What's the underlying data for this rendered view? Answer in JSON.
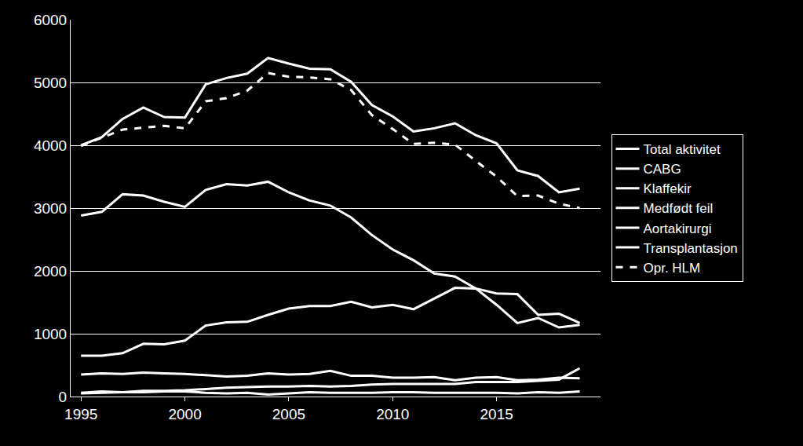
{
  "chart_data": {
    "type": "line",
    "x": [
      1995,
      1996,
      1997,
      1998,
      1999,
      2000,
      2001,
      2002,
      2003,
      2004,
      2005,
      2006,
      2007,
      2008,
      2009,
      2010,
      2011,
      2012,
      2013,
      2014,
      2015,
      2016,
      2017,
      2018,
      2019
    ],
    "xlim": [
      1994.5,
      2020
    ],
    "xticks": [
      1995,
      2000,
      2005,
      2010,
      2015
    ],
    "ylim": [
      0,
      6000
    ],
    "yticks": [
      0,
      1000,
      2000,
      3000,
      4000,
      5000,
      6000
    ],
    "grid": true,
    "legend": "right",
    "series": [
      {
        "name": "Total aktivitet",
        "color": "#ffffff",
        "line_style": "solid",
        "values": [
          4000,
          4130,
          4420,
          4600,
          4450,
          4440,
          4970,
          5070,
          5140,
          5390,
          5300,
          5220,
          5210,
          5010,
          4640,
          4460,
          4220,
          4270,
          4350,
          4160,
          4030,
          3600,
          3510,
          3250,
          3310
        ]
      },
      {
        "name": "CABG",
        "color": "#ffffff",
        "line_style": "solid",
        "values": [
          2880,
          2940,
          3220,
          3200,
          3100,
          3020,
          3290,
          3380,
          3360,
          3420,
          3250,
          3120,
          3040,
          2850,
          2570,
          2340,
          2170,
          1960,
          1910,
          1720,
          1460,
          1170,
          1250,
          1100,
          1140
        ]
      },
      {
        "name": "Klaffekir",
        "color": "#ffffff",
        "line_style": "solid",
        "values": [
          650,
          650,
          690,
          840,
          830,
          890,
          1130,
          1180,
          1190,
          1300,
          1400,
          1440,
          1440,
          1510,
          1420,
          1460,
          1390,
          1560,
          1730,
          1720,
          1640,
          1630,
          1300,
          1320,
          1170
        ]
      },
      {
        "name": "Medfødt feil",
        "color": "#ffffff",
        "line_style": "solid",
        "values": [
          350,
          370,
          360,
          380,
          370,
          360,
          340,
          320,
          330,
          370,
          350,
          360,
          410,
          330,
          330,
          300,
          300,
          310,
          260,
          300,
          310,
          260,
          270,
          300,
          290
        ]
      },
      {
        "name": "Aortakirurgi",
        "color": "#ffffff",
        "line_style": "solid",
        "values": [
          60,
          80,
          70,
          90,
          90,
          100,
          120,
          140,
          150,
          160,
          160,
          170,
          160,
          170,
          190,
          200,
          200,
          200,
          200,
          230,
          230,
          230,
          250,
          270,
          450
        ]
      },
      {
        "name": "Transplantasjon",
        "color": "#ffffff",
        "line_style": "solid",
        "values": [
          50,
          60,
          70,
          70,
          80,
          80,
          60,
          50,
          60,
          30,
          50,
          70,
          60,
          60,
          60,
          70,
          70,
          60,
          60,
          60,
          60,
          50,
          70,
          60,
          80
        ]
      },
      {
        "name": "Opr. HLM",
        "color": "#ffffff",
        "line_style": "dashed",
        "values": [
          3990,
          4120,
          4250,
          4280,
          4310,
          4270,
          4700,
          4750,
          4870,
          5150,
          5090,
          5080,
          5050,
          4880,
          4480,
          4260,
          4020,
          4040,
          4010,
          3750,
          3500,
          3190,
          3200,
          3070,
          3000
        ]
      }
    ]
  }
}
